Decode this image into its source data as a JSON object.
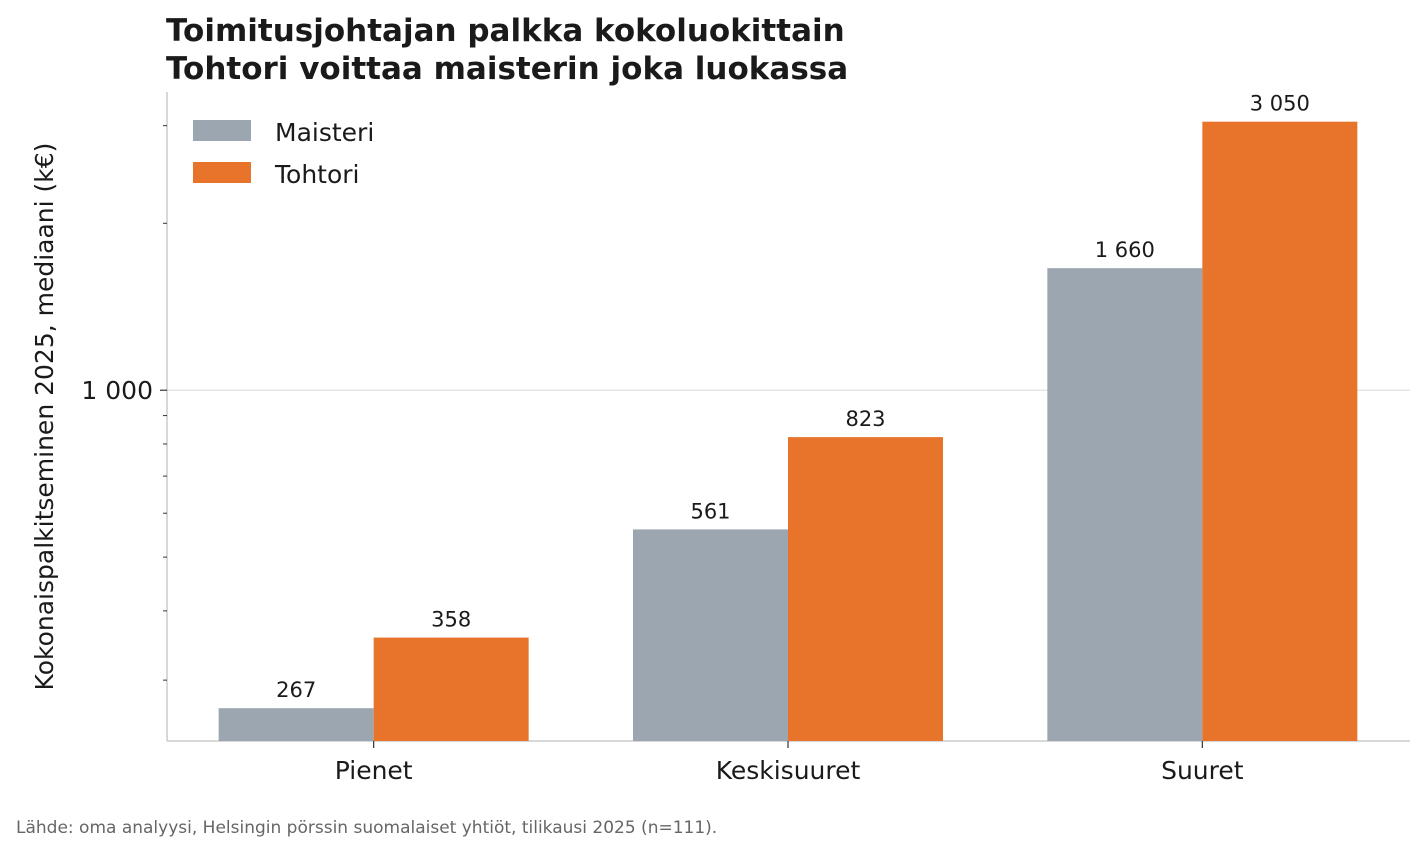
{
  "chart_data": {
    "type": "bar",
    "title": "Toimitusjohtajan palkka kokoluokittain",
    "subtitle": "Tohtori voittaa maisterin joka luokassa",
    "ylabel": "Kokonaispalkitseminen 2025, mediaani (k€)",
    "xlabel": "",
    "y_scale": "log",
    "ylim": [
      233,
      3450
    ],
    "yticks": [
      {
        "value": 1000,
        "label": "1 000"
      }
    ],
    "grid": "horizontal",
    "legend_position": "top-left",
    "categories": [
      "Pienet",
      "Keskisuuret",
      "Suuret"
    ],
    "series": [
      {
        "name": "Maisteri",
        "color": "#9ba6b1",
        "values": [
          267,
          561,
          1660
        ],
        "labels": [
          "267",
          "561",
          "1 660"
        ]
      },
      {
        "name": "Tohtori",
        "color": "#e8742c",
        "values": [
          358,
          823,
          3050
        ],
        "labels": [
          "358",
          "823",
          "3 050"
        ]
      }
    ]
  },
  "source": "Lähde: oma analyysi, Helsingin pörssin suomalaiset yhtiöt, tilikausi 2025 (n=111)."
}
